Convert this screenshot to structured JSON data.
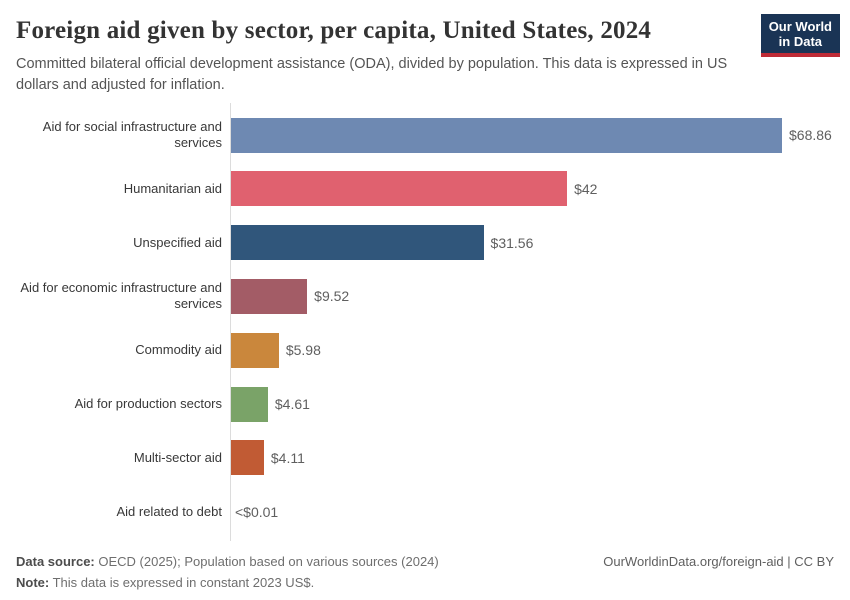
{
  "header": {
    "title": "Foreign aid given by sector, per capita, United States, 2024",
    "subtitle": "Committed bilateral official development assistance (ODA), divided by population. This data is expressed in US dollars and adjusted for inflation.",
    "logo_line1": "Our World",
    "logo_line2": "in Data"
  },
  "chart_data": {
    "type": "bar",
    "orientation": "horizontal",
    "title": "Foreign aid given by sector, per capita, United States, 2024",
    "xlabel": "",
    "ylabel": "",
    "xlim": [
      0,
      69
    ],
    "grid": false,
    "legend": "none",
    "categories": [
      "Aid for social infrastructure and services",
      "Humanitarian aid",
      "Unspecified aid",
      "Aid for economic infrastructure and services",
      "Commodity aid",
      "Aid for production sectors",
      "Multi-sector aid",
      "Aid related to debt"
    ],
    "values": [
      68.86,
      42,
      31.56,
      9.52,
      5.98,
      4.61,
      4.11,
      0.005
    ],
    "value_labels": [
      "$68.86",
      "$42",
      "$31.56",
      "$9.52",
      "$5.98",
      "$4.61",
      "$4.11",
      "<$0.01"
    ],
    "bar_colors": [
      "#6e89b2",
      "#e0616f",
      "#30567b",
      "#a35c66",
      "#ca873c",
      "#7aa368",
      "#c15b34",
      "#6e89b2"
    ]
  },
  "footer": {
    "source_label": "Data source:",
    "source_text": "OECD (2025); Population based on various sources (2024)",
    "note_label": "Note:",
    "note_text": "This data is expressed in constant 2023 US$.",
    "credit": "OurWorldinData.org/foreign-aid | CC BY"
  },
  "colors": {
    "logo_navy": "#1a3455",
    "logo_red": "#be2b36",
    "axis_line": "#dcdcdc"
  }
}
